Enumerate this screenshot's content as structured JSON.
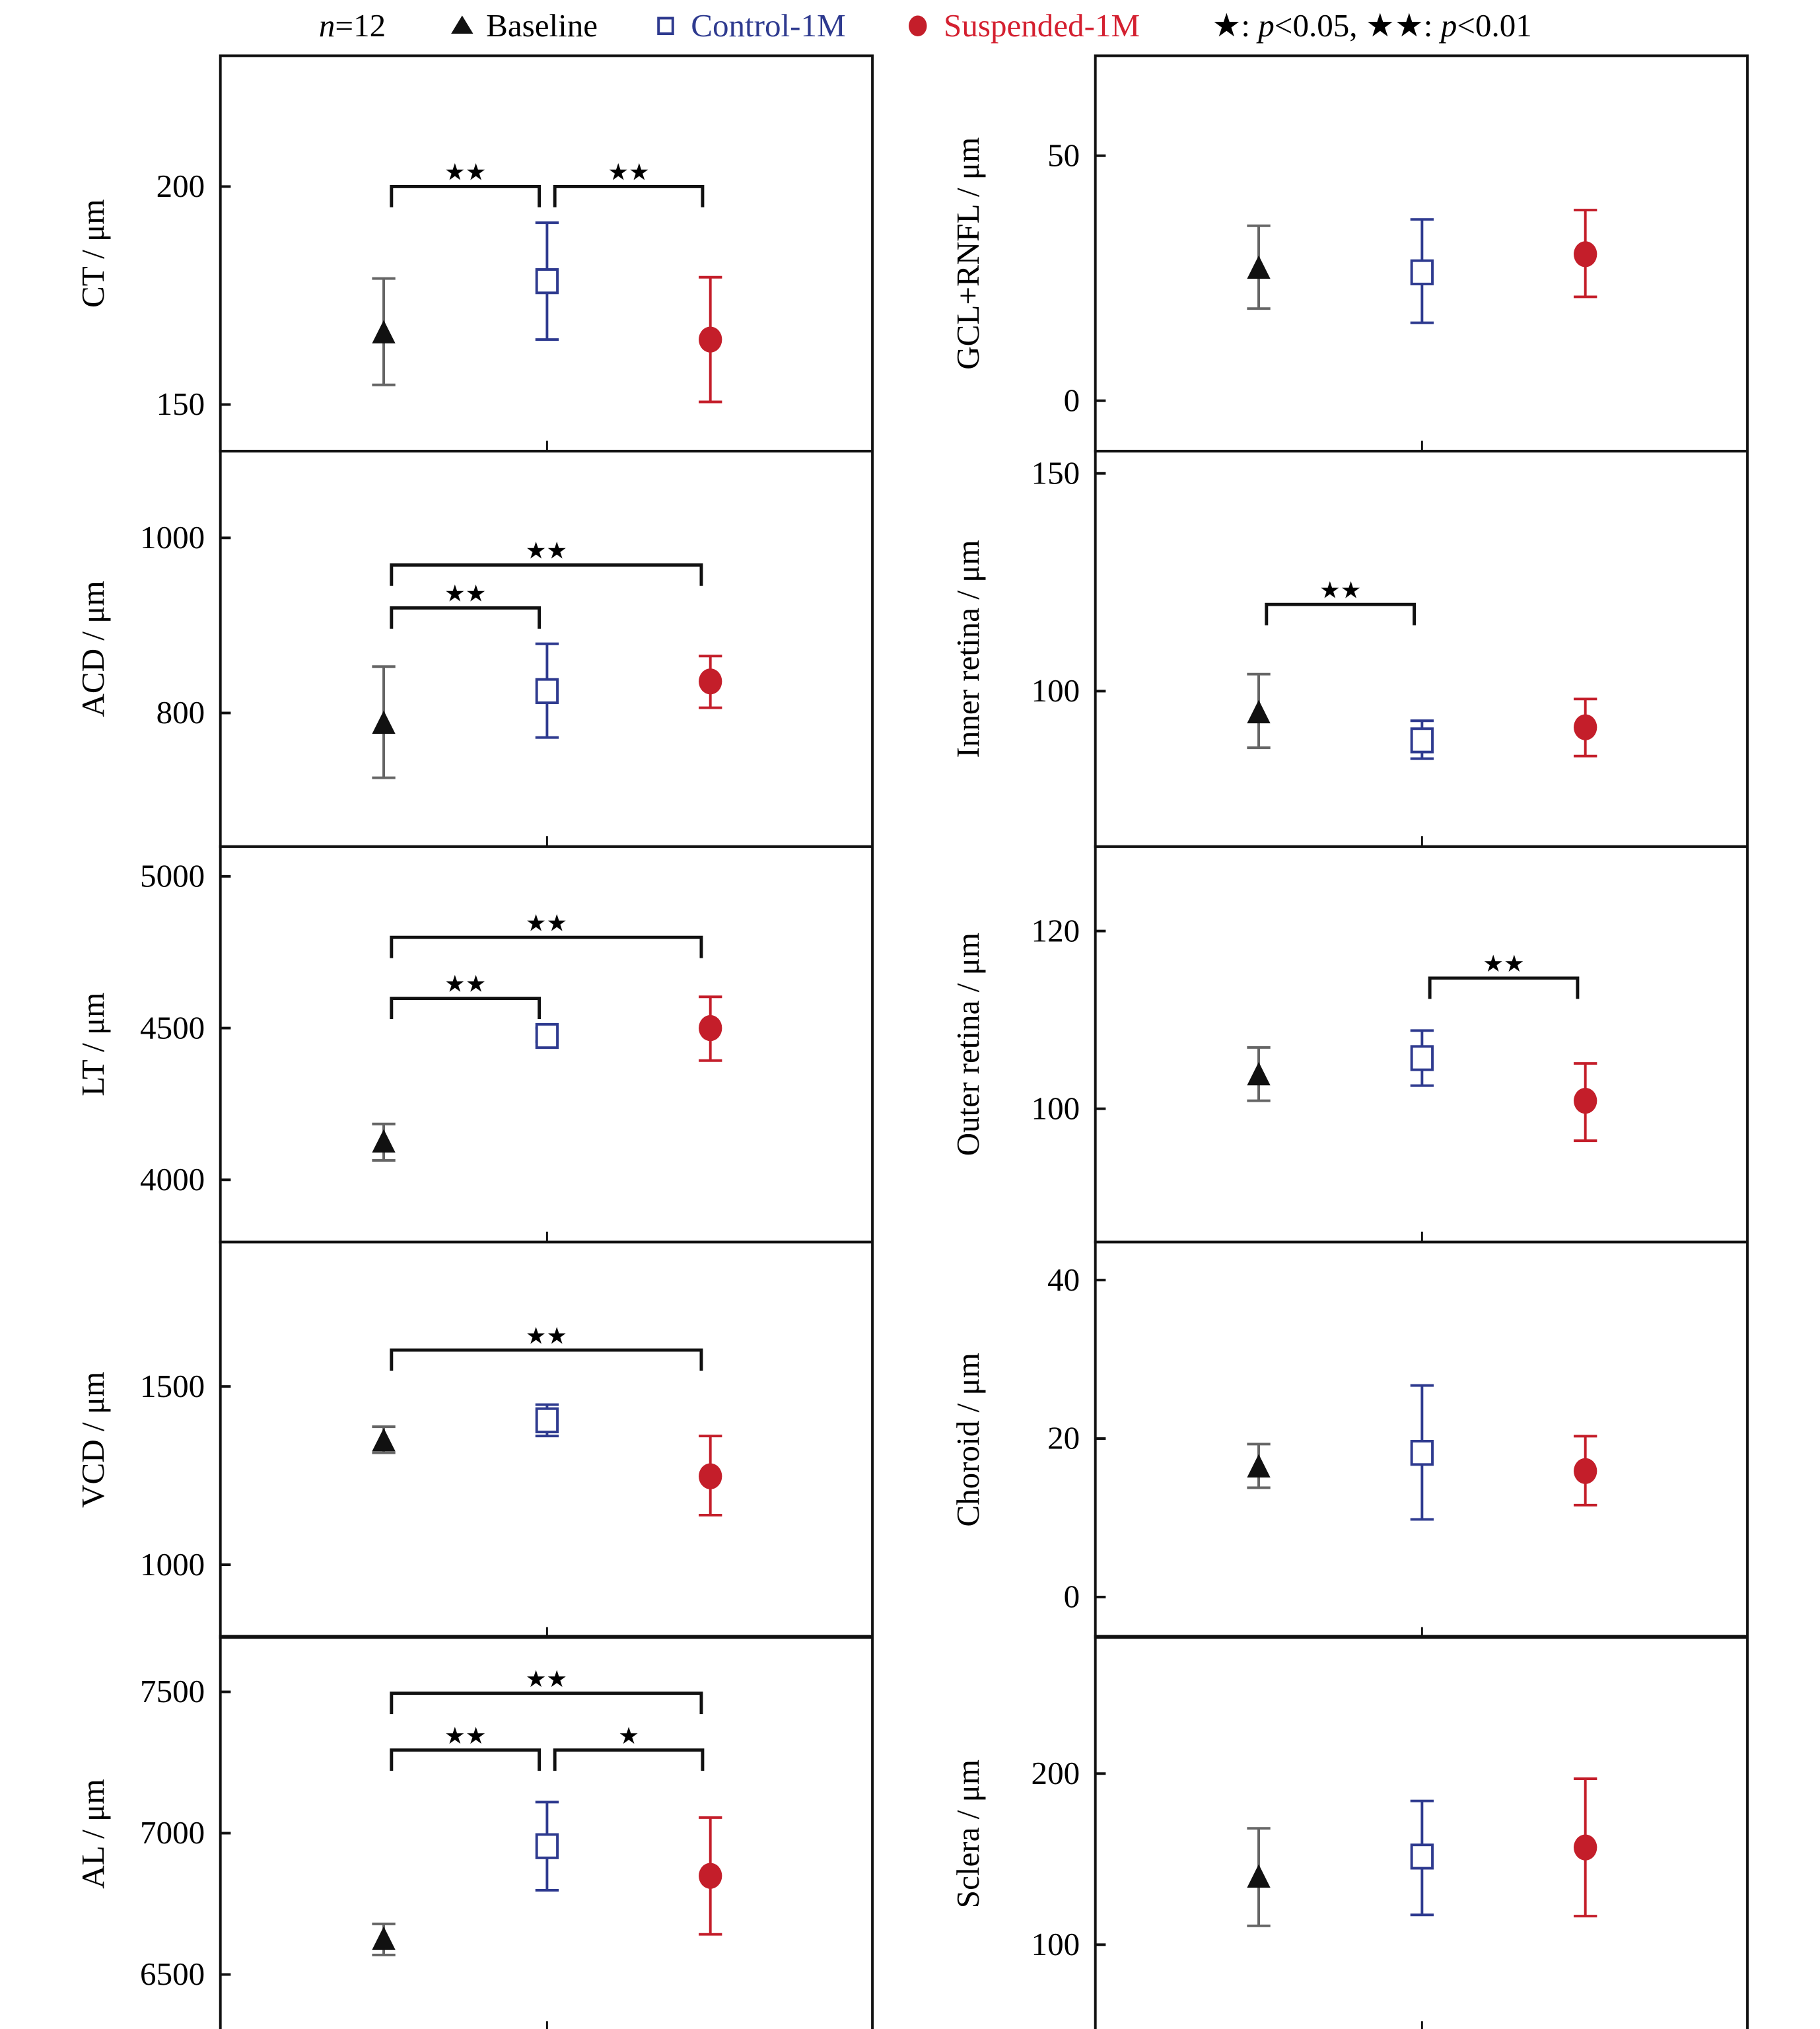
{
  "legend": {
    "n_label": "n",
    "n_value": "=12",
    "baseline": "Baseline",
    "control": "Control-1M",
    "suspended": "Suspended-1M",
    "sig_one": "★: ",
    "sig_one_p": "p",
    "sig_one_val": "<0.05, ",
    "sig_two": "★★: ",
    "sig_two_p": "p",
    "sig_two_val": "<0.01"
  },
  "colors": {
    "baseline": "#111111",
    "baseline_bar": "#666666",
    "control": "#2e3a8f",
    "suspended": "#c41e2a"
  },
  "chart_data": [
    {
      "type": "scatter",
      "ylabel": "CT / μm",
      "ylim": [
        139.3,
        230
      ],
      "yticks": [
        150,
        200
      ],
      "column": "left",
      "row": 0,
      "series": [
        {
          "name": "Baseline",
          "mean": 166.4,
          "upper": 178.9,
          "lower": 154.5
        },
        {
          "name": "Control-1M",
          "mean": 178.3,
          "upper": 191.7,
          "lower": 164.9
        },
        {
          "name": "Suspended-1M",
          "mean": 164.9,
          "upper": 179.2,
          "lower": 150.6
        }
      ],
      "significance": [
        {
          "from": 0,
          "to": 1,
          "label": "★★",
          "level": 200
        },
        {
          "from": 1,
          "to": 2,
          "label": "★★",
          "level": 200
        }
      ]
    },
    {
      "type": "scatter",
      "ylabel": "ACD / μm",
      "ylim": [
        647.4,
        1099
      ],
      "yticks": [
        800,
        1000
      ],
      "column": "left",
      "row": 1,
      "series": [
        {
          "name": "Baseline",
          "mean": 788,
          "upper": 853,
          "lower": 726
        },
        {
          "name": "Control-1M",
          "mean": 825,
          "upper": 879,
          "lower": 772
        },
        {
          "name": "Suspended-1M",
          "mean": 836,
          "upper": 865,
          "lower": 806
        }
      ],
      "significance": [
        {
          "from": 0,
          "to": 2,
          "label": "★★",
          "level": 969
        },
        {
          "from": 0,
          "to": 1,
          "label": "★★",
          "level": 920
        }
      ]
    },
    {
      "type": "scatter",
      "ylabel": "LT / μm",
      "ylim": [
        3795,
        5098
      ],
      "yticks": [
        4000,
        4500,
        5000
      ],
      "column": "left",
      "row": 2,
      "series": [
        {
          "name": "Baseline",
          "mean": 4124,
          "upper": 4184,
          "lower": 4064
        },
        {
          "name": "Control-1M",
          "mean": 4474,
          "upper": 4500,
          "lower": 4455
        },
        {
          "name": "Suspended-1M",
          "mean": 4500,
          "upper": 4603,
          "lower": 4393
        }
      ],
      "significance": [
        {
          "from": 0,
          "to": 2,
          "label": "★★",
          "level": 4799
        },
        {
          "from": 0,
          "to": 1,
          "label": "★★",
          "level": 4598
        }
      ]
    },
    {
      "type": "scatter",
      "ylabel": "VCD / μm",
      "ylim": [
        796,
        1905
      ],
      "yticks": [
        1000,
        1500
      ],
      "column": "left",
      "row": 3,
      "series": [
        {
          "name": "Baseline",
          "mean": 1347,
          "upper": 1387,
          "lower": 1314
        },
        {
          "name": "Control-1M",
          "mean": 1405,
          "upper": 1449,
          "lower": 1361
        },
        {
          "name": "Suspended-1M",
          "mean": 1248,
          "upper": 1361,
          "lower": 1139
        }
      ],
      "significance": [
        {
          "from": 0,
          "to": 2,
          "label": "★★",
          "level": 1602
        }
      ]
    },
    {
      "type": "scatter",
      "ylabel": "AL / μm",
      "ylim": [
        6298,
        7697
      ],
      "yticks": [
        6500,
        7000,
        7500
      ],
      "column": "left",
      "row": 4,
      "series": [
        {
          "name": "Baseline",
          "mean": 6624,
          "upper": 6679,
          "lower": 6569
        },
        {
          "name": "Control-1M",
          "mean": 6954,
          "upper": 7110,
          "lower": 6798
        },
        {
          "name": "Suspended-1M",
          "mean": 6849,
          "upper": 7055,
          "lower": 6642
        }
      ],
      "significance": [
        {
          "from": 0,
          "to": 2,
          "label": "★★",
          "level": 7495
        },
        {
          "from": 0,
          "to": 1,
          "label": "★★",
          "level": 7294
        },
        {
          "from": 1,
          "to": 2,
          "label": "★",
          "level": 7294
        }
      ]
    },
    {
      "type": "scatter",
      "ylabel": "GCL+RNFL / μm",
      "ylim": [
        -10.3,
        70.4
      ],
      "yticks": [
        0,
        50
      ],
      "column": "right",
      "row": 0,
      "series": [
        {
          "name": "Baseline",
          "mean": 27,
          "upper": 35.7,
          "lower": 18.8
        },
        {
          "name": "Control-1M",
          "mean": 26.2,
          "upper": 37,
          "lower": 15.9
        },
        {
          "name": "Suspended-1M",
          "mean": 29.9,
          "upper": 38.9,
          "lower": 21.2
        }
      ],
      "significance": []
    },
    {
      "type": "scatter",
      "ylabel": "Inner retina / μm",
      "ylim": [
        64.3,
        155.1
      ],
      "yticks": [
        100,
        150
      ],
      "column": "right",
      "row": 1,
      "series": [
        {
          "name": "Baseline",
          "mean": 95,
          "upper": 103.9,
          "lower": 87
        },
        {
          "name": "Control-1M",
          "mean": 88.7,
          "upper": 93.2,
          "lower": 84.5
        },
        {
          "name": "Suspended-1M",
          "mean": 91.7,
          "upper": 98.2,
          "lower": 85.1
        }
      ],
      "significance": [
        {
          "from": 0,
          "to": 1,
          "label": "★★",
          "level": 119.9
        }
      ]
    },
    {
      "type": "scatter",
      "ylabel": "Outer retina / μm",
      "ylim": [
        85,
        129.5
      ],
      "yticks": [
        100,
        120
      ],
      "column": "right",
      "row": 2,
      "series": [
        {
          "name": "Baseline",
          "mean": 103.8,
          "upper": 106.9,
          "lower": 100.9
        },
        {
          "name": "Control-1M",
          "mean": 105.7,
          "upper": 108.8,
          "lower": 102.6
        },
        {
          "name": "Suspended-1M",
          "mean": 100.9,
          "upper": 105.1,
          "lower": 96.4
        }
      ],
      "significance": [
        {
          "from": 1,
          "to": 2,
          "label": "★★",
          "level": 114.7
        }
      ]
    },
    {
      "type": "scatter",
      "ylabel": "Choroid / μm",
      "ylim": [
        -5.1,
        44.8
      ],
      "yticks": [
        0,
        20,
        40
      ],
      "column": "right",
      "row": 3,
      "series": [
        {
          "name": "Baseline",
          "mean": 16.4,
          "upper": 19.3,
          "lower": 13.8
        },
        {
          "name": "Control-1M",
          "mean": 18.2,
          "upper": 26.7,
          "lower": 9.8
        },
        {
          "name": "Suspended-1M",
          "mean": 15.9,
          "upper": 20.3,
          "lower": 11.6
        }
      ],
      "significance": []
    },
    {
      "type": "scatter",
      "ylabel": "Sclera / μm",
      "ylim": [
        49.2,
        280.3
      ],
      "yticks": [
        100,
        200
      ],
      "column": "right",
      "row": 4,
      "series": [
        {
          "name": "Baseline",
          "mean": 139.4,
          "upper": 168,
          "lower": 111
        },
        {
          "name": "Control-1M",
          "mean": 151.5,
          "upper": 184,
          "lower": 117.4
        },
        {
          "name": "Suspended-1M",
          "mean": 156.8,
          "upper": 197,
          "lower": 116.7
        }
      ],
      "significance": []
    }
  ]
}
